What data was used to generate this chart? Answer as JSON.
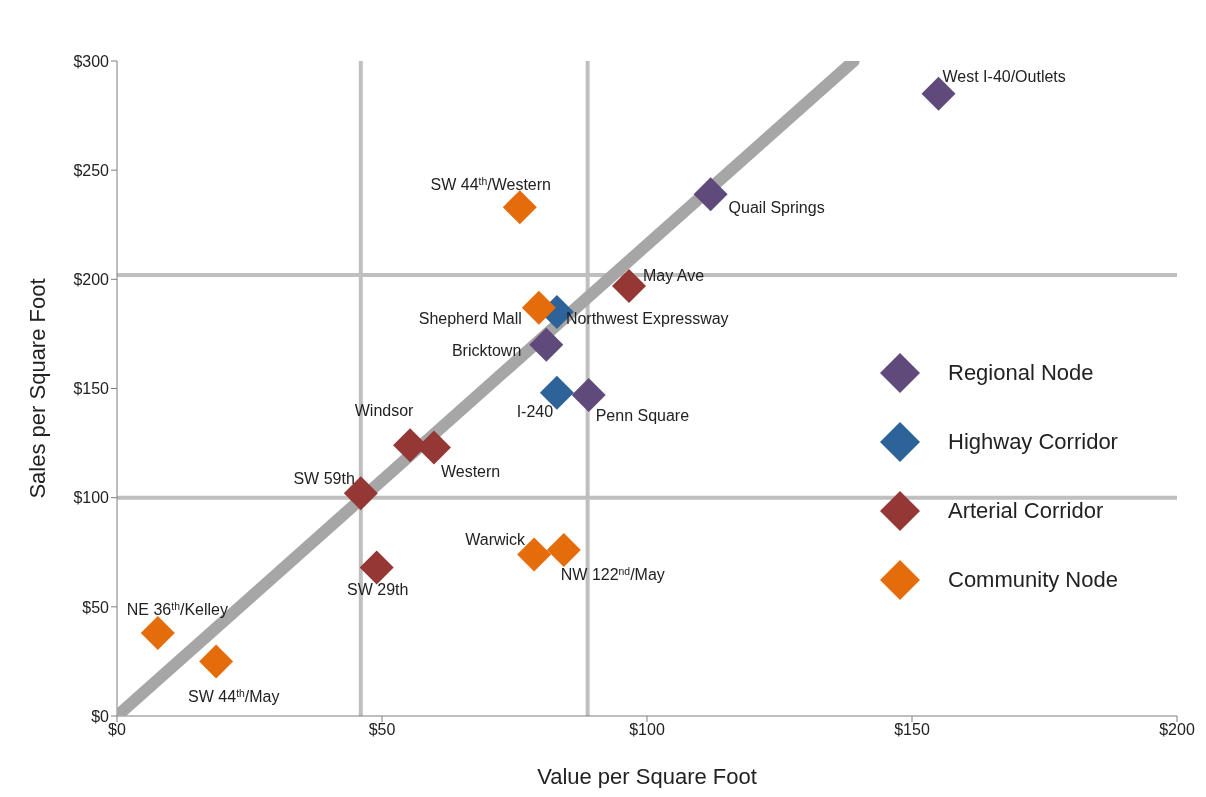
{
  "chart_data": {
    "type": "scatter",
    "xlabel": "Value per Square Foot",
    "ylabel": "Sales per Square Foot",
    "xlim": [
      0,
      200
    ],
    "ylim": [
      0,
      300
    ],
    "xticks": [
      {
        "value": 0,
        "label": "$0"
      },
      {
        "value": 50,
        "label": "$50"
      },
      {
        "value": 100,
        "label": "$100"
      },
      {
        "value": 150,
        "label": "$150"
      },
      {
        "value": 200,
        "label": "$200"
      }
    ],
    "yticks": [
      {
        "value": 0,
        "label": "$0"
      },
      {
        "value": 50,
        "label": "$50"
      },
      {
        "value": 100,
        "label": "$100"
      },
      {
        "value": 150,
        "label": "$150"
      },
      {
        "value": 200,
        "label": "$200"
      },
      {
        "value": 250,
        "label": "$250"
      },
      {
        "value": 300,
        "label": "$300"
      }
    ],
    "legend": "right",
    "marker": "diamond",
    "series": [
      {
        "type": "line",
        "marker": "none",
        "color": "#a6a6a6",
        "x": [
          0,
          139
        ],
        "values": [
          0,
          300
        ]
      },
      {
        "name": "Regional Node",
        "color": "#604a7b",
        "x": [
          155,
          112,
          81,
          89
        ],
        "values": [
          285,
          239,
          170,
          147
        ]
      },
      {
        "name": "Highway Corridor",
        "color": "#2e6399",
        "x": [
          83,
          83
        ],
        "values": [
          185,
          148
        ]
      },
      {
        "name": "Arterial Corridor",
        "color": "#953735",
        "x": [
          96.6,
          55.3,
          59.8,
          46,
          49
        ],
        "values": [
          197,
          124,
          123,
          102,
          68
        ]
      },
      {
        "name": "Community Node",
        "color": "#e46c0a",
        "x": [
          76,
          79.6,
          78.7,
          84.3,
          7.7,
          18.7
        ],
        "values": [
          233,
          187,
          74,
          76,
          38,
          25
        ]
      }
    ],
    "ref_lines": [
      {
        "axis": "x",
        "value": 46,
        "color": "#bfbfbf"
      },
      {
        "axis": "x",
        "value": 88.8,
        "color": "#bfbfbf"
      },
      {
        "axis": "y",
        "value": 100,
        "color": "#bfbfbf"
      },
      {
        "axis": "y",
        "value": 202,
        "color": "#bfbfbf"
      }
    ],
    "annotations": [
      {
        "text": "West I-40/Outlets",
        "x": 155,
        "y": 285
      },
      {
        "text": "Quail Springs",
        "x": 112,
        "y": 239
      },
      {
        "text": "SW 44$^{th}$/Western",
        "x": 76,
        "y": 233
      },
      {
        "text": "May Ave",
        "x": 96.6,
        "y": 197
      },
      {
        "text": "Shepherd Mall",
        "x": 79.6,
        "y": 187
      },
      {
        "text": "Northwest Expressway",
        "x": 83,
        "y": 185
      },
      {
        "text": "Bricktown",
        "x": 81,
        "y": 170
      },
      {
        "text": "I-240",
        "x": 83,
        "y": 148
      },
      {
        "text": "Penn Square",
        "x": 89,
        "y": 147
      },
      {
        "text": "Windsor",
        "x": 55.3,
        "y": 124
      },
      {
        "text": "Western",
        "x": 59.8,
        "y": 123
      },
      {
        "text": "SW 59th",
        "x": 46,
        "y": 102
      },
      {
        "text": "SW 29th",
        "x": 49,
        "y": 68
      },
      {
        "text": "Warwick",
        "x": 78.7,
        "y": 74
      },
      {
        "text": "NW 122$^{nd}$/May",
        "x": 84.3,
        "y": 76
      },
      {
        "text": "NE 36$^{th}$/Kelley",
        "x": 7.7,
        "y": 38
      },
      {
        "text": "SW 44$^{th}$/May",
        "x": 18.7,
        "y": 25
      }
    ]
  }
}
